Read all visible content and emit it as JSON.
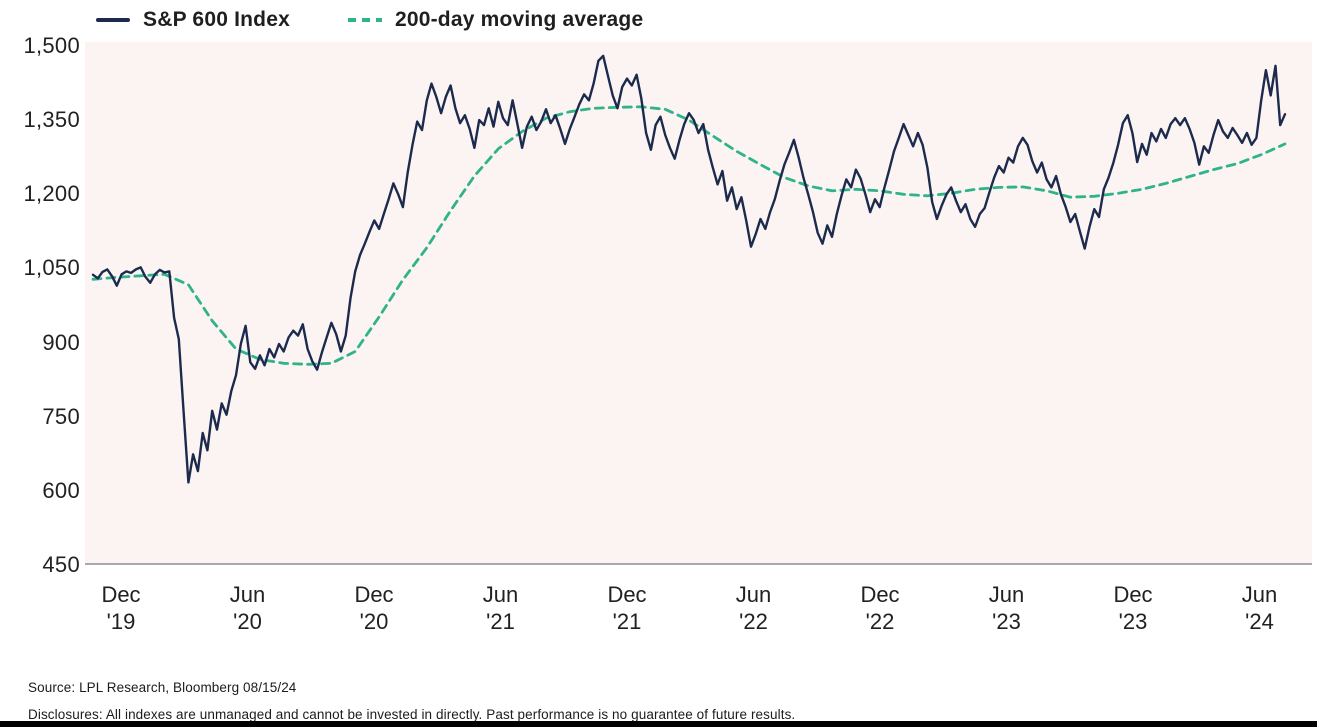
{
  "legend": {
    "items": [
      {
        "label": "S&P 600 Index",
        "swatch": "solid-line",
        "color": "#1c2b4d"
      },
      {
        "label": "200-day moving average",
        "swatch": "dashed-line",
        "color": "#2eb38a"
      }
    ]
  },
  "colors": {
    "index_line": "#1c2b4d",
    "ma_line": "#2eb38a",
    "plot_background": "#fbf4f2",
    "axis_line": "#a9a9ac",
    "text": "#232020",
    "bottom_bar": "#000000"
  },
  "footer": {
    "source": "Source: LPL Research, Bloomberg 08/15/24",
    "disclosures": "Disclosures: All indexes are unmanaged and cannot be invested in directly. Past performance is no guarantee of future results."
  },
  "chart_data": {
    "type": "line",
    "title": "",
    "xlabel": "",
    "ylabel": "",
    "grid": false,
    "legend_position": "top-left",
    "ylim": [
      450,
      1500
    ],
    "yticks": [
      1500,
      1350,
      1200,
      1050,
      900,
      750,
      600,
      450
    ],
    "xticks": [
      {
        "month": "Dec",
        "year": "'19"
      },
      {
        "month": "Jun",
        "year": "'20"
      },
      {
        "month": "Dec",
        "year": "'20"
      },
      {
        "month": "Jun",
        "year": "'21"
      },
      {
        "month": "Dec",
        "year": "'21"
      },
      {
        "month": "Jun",
        "year": "'22"
      },
      {
        "month": "Dec",
        "year": "'22"
      },
      {
        "month": "Jun",
        "year": "'23"
      },
      {
        "month": "Dec",
        "year": "'23"
      },
      {
        "month": "Jun",
        "year": "'24"
      }
    ],
    "x_range": {
      "start": "Nov 2019",
      "end": "Aug 15, 2024"
    },
    "series": [
      {
        "name": "S&P 600 Index",
        "style": "solid",
        "color": "#1c2b4d",
        "sampling": "approx. weekly, Nov 2019 to Aug 15 2024",
        "values": [
          1035,
          1028,
          1041,
          1046,
          1032,
          1013,
          1036,
          1042,
          1039,
          1046,
          1050,
          1031,
          1019,
          1036,
          1045,
          1040,
          1042,
          948,
          905,
          758,
          615,
          672,
          638,
          715,
          680,
          760,
          722,
          775,
          752,
          800,
          832,
          895,
          932,
          858,
          845,
          872,
          852,
          885,
          868,
          895,
          880,
          908,
          922,
          912,
          935,
          885,
          860,
          843,
          878,
          908,
          938,
          915,
          880,
          912,
          988,
          1042,
          1075,
          1098,
          1122,
          1145,
          1128,
          1158,
          1188,
          1220,
          1198,
          1172,
          1242,
          1298,
          1345,
          1328,
          1388,
          1422,
          1395,
          1362,
          1395,
          1418,
          1372,
          1342,
          1358,
          1330,
          1292,
          1348,
          1338,
          1372,
          1335,
          1385,
          1352,
          1338,
          1388,
          1340,
          1292,
          1335,
          1355,
          1328,
          1345,
          1370,
          1342,
          1358,
          1330,
          1300,
          1330,
          1355,
          1380,
          1400,
          1388,
          1422,
          1468,
          1478,
          1438,
          1398,
          1372,
          1415,
          1432,
          1418,
          1440,
          1392,
          1322,
          1288,
          1338,
          1355,
          1318,
          1292,
          1270,
          1308,
          1340,
          1362,
          1348,
          1322,
          1340,
          1288,
          1252,
          1218,
          1245,
          1185,
          1212,
          1168,
          1192,
          1145,
          1092,
          1118,
          1148,
          1128,
          1162,
          1188,
          1225,
          1258,
          1282,
          1308,
          1272,
          1232,
          1198,
          1162,
          1120,
          1098,
          1135,
          1112,
          1158,
          1196,
          1228,
          1212,
          1248,
          1230,
          1198,
          1162,
          1188,
          1172,
          1212,
          1248,
          1285,
          1312,
          1340,
          1318,
          1295,
          1322,
          1298,
          1252,
          1182,
          1148,
          1175,
          1198,
          1212,
          1185,
          1162,
          1178,
          1148,
          1132,
          1158,
          1170,
          1202,
          1232,
          1255,
          1242,
          1272,
          1262,
          1295,
          1312,
          1298,
          1265,
          1242,
          1262,
          1228,
          1212,
          1235,
          1198,
          1172,
          1142,
          1158,
          1122,
          1088,
          1132,
          1168,
          1152,
          1208,
          1232,
          1262,
          1298,
          1342,
          1358,
          1322,
          1263,
          1300,
          1278,
          1322,
          1305,
          1330,
          1312,
          1340,
          1352,
          1338,
          1352,
          1330,
          1302,
          1258,
          1295,
          1282,
          1318,
          1348,
          1325,
          1312,
          1332,
          1318,
          1302,
          1322,
          1298,
          1312,
          1388,
          1449,
          1398,
          1458,
          1338,
          1360
        ]
      },
      {
        "name": "200-day moving average",
        "style": "dashed",
        "color": "#2eb38a",
        "sampling": "approx. every 5 weeks, Nov 2019 to Aug 15 2024",
        "values": [
          1026,
          1030,
          1033,
          1036,
          1015,
          942,
          885,
          864,
          856,
          854,
          856,
          880,
          950,
          1025,
          1090,
          1165,
          1235,
          1290,
          1325,
          1352,
          1365,
          1372,
          1374,
          1375,
          1370,
          1348,
          1316,
          1285,
          1258,
          1232,
          1215,
          1205,
          1208,
          1205,
          1198,
          1195,
          1200,
          1208,
          1212,
          1213,
          1205,
          1192,
          1194,
          1200,
          1208,
          1220,
          1234,
          1248,
          1260,
          1278,
          1300
        ]
      }
    ]
  }
}
